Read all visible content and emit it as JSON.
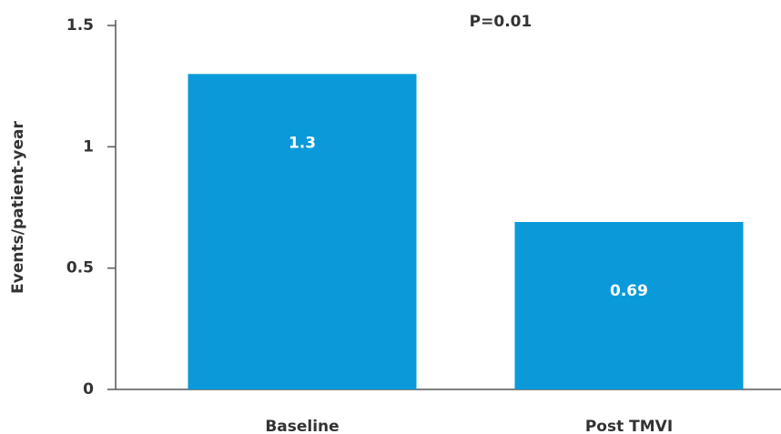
{
  "chart_data": {
    "type": "bar",
    "annotation": "P=0.01",
    "y_label": "Events/patient-year",
    "categories": [
      "Baseline",
      "Post TMVI"
    ],
    "values": [
      1.3,
      0.69
    ],
    "color": "#0a9ad9",
    "ylim": [
      0,
      1.5
    ],
    "yticks": [
      0,
      0.5,
      1,
      1.5
    ]
  }
}
